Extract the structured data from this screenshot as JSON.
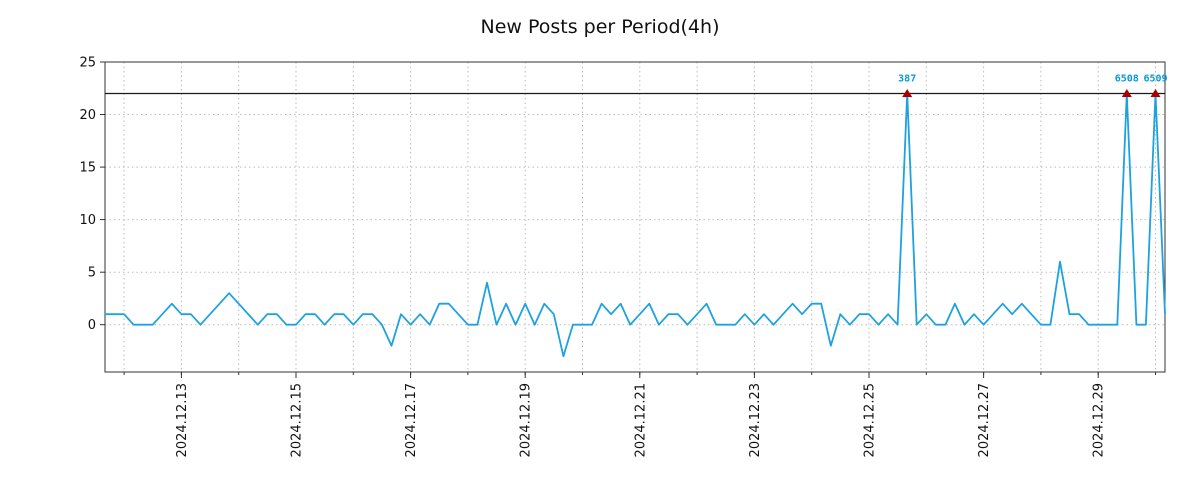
{
  "title": "New Posts per Period(4h)",
  "colors": {
    "line": "#1da2e0",
    "marker": "#aa0000",
    "annotation": "#0a9ad6",
    "grid": "#bbbbbb",
    "frame": "#333333",
    "clip_line": "#1a1a1a",
    "tick_text": "#111111"
  },
  "chart_data": {
    "type": "line",
    "title": "New Posts per Period(4h)",
    "period": "4h",
    "clip_level": 22,
    "ylim": [
      -4.5,
      25
    ],
    "yticks": [
      0,
      5,
      10,
      15,
      20,
      25
    ],
    "values": [
      1,
      1,
      1,
      0,
      0,
      0,
      1,
      2,
      1,
      1,
      0,
      1,
      2,
      3,
      2,
      1,
      0,
      1,
      1,
      0,
      0,
      1,
      1,
      0,
      1,
      1,
      0,
      1,
      1,
      0,
      -2,
      1,
      0,
      1,
      0,
      2,
      2,
      1,
      0,
      0,
      4,
      0,
      2,
      0,
      2,
      0,
      2,
      1,
      -3,
      0,
      0,
      0,
      2,
      1,
      2,
      0,
      1,
      2,
      0,
      1,
      1,
      0,
      1,
      2,
      0,
      0,
      0,
      1,
      0,
      1,
      0,
      1,
      2,
      1,
      2,
      2,
      -2,
      1,
      0,
      1,
      1,
      0,
      1,
      0,
      387,
      0,
      1,
      0,
      0,
      2,
      0,
      1,
      0,
      1,
      2,
      1,
      2,
      1,
      0,
      0,
      6,
      1,
      1,
      0,
      0,
      0,
      0,
      6508,
      0,
      0,
      6509,
      1
    ],
    "xticks": [
      {
        "index": 8,
        "label": "2024.12.13"
      },
      {
        "index": 20,
        "label": "2024.12.15"
      },
      {
        "index": 32,
        "label": "2024.12.17"
      },
      {
        "index": 44,
        "label": "2024.12.19"
      },
      {
        "index": 56,
        "label": "2024.12.21"
      },
      {
        "index": 68,
        "label": "2024.12.23"
      },
      {
        "index": 80,
        "label": "2024.12.25"
      },
      {
        "index": 92,
        "label": "2024.12.27"
      },
      {
        "index": 104,
        "label": "2024.12.29"
      }
    ],
    "day_grid_indices": [
      2,
      8,
      14,
      20,
      26,
      32,
      38,
      44,
      50,
      56,
      62,
      68,
      74,
      80,
      86,
      92,
      98,
      104,
      110
    ],
    "annotations": [
      {
        "index": 84,
        "value": 387,
        "label": "387"
      },
      {
        "index": 107,
        "value": 6508,
        "label": "6508"
      },
      {
        "index": 110,
        "value": 6509,
        "label": "6509"
      }
    ],
    "legend": "none",
    "grid": "dotted"
  }
}
